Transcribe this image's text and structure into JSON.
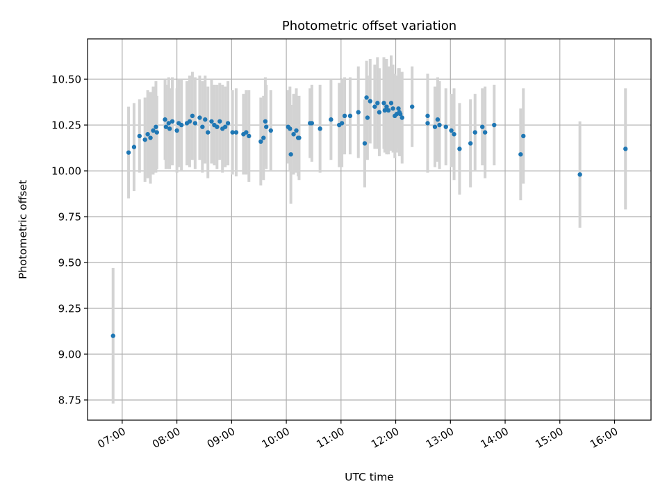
{
  "chart_data": {
    "type": "scatter",
    "title": "Photometric offset variation",
    "xlabel": "UTC time",
    "ylabel": "Photometric offset",
    "x_ticks": [
      "07:00",
      "08:00",
      "09:00",
      "10:00",
      "11:00",
      "12:00",
      "13:00",
      "14:00",
      "15:00",
      "16:00"
    ],
    "y_ticks": [
      "8.75",
      "9.00",
      "9.25",
      "9.50",
      "9.75",
      "10.00",
      "10.25",
      "10.50"
    ],
    "xlim": [
      "06:22",
      "16:40"
    ],
    "ylim": [
      8.64,
      10.72
    ],
    "grid": true,
    "point_color": "#1f77b4",
    "errorbar_color": "#d3d3d3",
    "series": [
      {
        "x": [
          "06:50",
          "07:07",
          "07:13",
          "07:19",
          "07:25",
          "07:28",
          "07:31",
          "07:34",
          "07:37",
          "07:38",
          "07:47",
          "07:48",
          "07:51",
          "07:52",
          "07:55",
          "08:00",
          "08:02",
          "08:05",
          "08:11",
          "08:14",
          "08:17",
          "08:20",
          "08:25",
          "08:28",
          "08:31",
          "08:34",
          "08:38",
          "08:41",
          "08:44",
          "08:47",
          "08:50",
          "08:53",
          "08:56",
          "09:01",
          "09:05",
          "09:13",
          "09:16",
          "09:19",
          "09:32",
          "09:35",
          "09:37",
          "09:38",
          "09:43",
          "10:02",
          "10:04",
          "10:05",
          "10:08",
          "10:11",
          "10:13",
          "10:14",
          "10:26",
          "10:28",
          "10:37",
          "10:49",
          "10:58",
          "11:01",
          "11:04",
          "11:10",
          "11:19",
          "11:26",
          "11:28",
          "11:29",
          "11:32",
          "11:37",
          "11:40",
          "11:42",
          "11:47",
          "11:48",
          "11:50",
          "11:52",
          "11:55",
          "11:57",
          "11:59",
          "12:01",
          "12:03",
          "12:04",
          "12:05",
          "12:07",
          "12:18",
          "12:35",
          "12:35",
          "12:43",
          "12:46",
          "12:48",
          "12:55",
          "13:01",
          "13:04",
          "13:10",
          "13:22",
          "13:27",
          "13:35",
          "13:38",
          "13:48",
          "14:17",
          "14:20",
          "15:22",
          "16:12"
        ],
        "y": [
          9.1,
          10.1,
          10.13,
          10.19,
          10.17,
          10.2,
          10.18,
          10.22,
          10.24,
          10.21,
          10.28,
          10.24,
          10.26,
          10.23,
          10.27,
          10.22,
          10.26,
          10.25,
          10.26,
          10.27,
          10.3,
          10.26,
          10.29,
          10.24,
          10.28,
          10.21,
          10.27,
          10.25,
          10.24,
          10.27,
          10.23,
          10.24,
          10.26,
          10.21,
          10.21,
          10.2,
          10.21,
          10.19,
          10.16,
          10.18,
          10.27,
          10.24,
          10.22,
          10.24,
          10.23,
          10.09,
          10.2,
          10.22,
          10.18,
          10.18,
          10.26,
          10.26,
          10.23,
          10.28,
          10.25,
          10.26,
          10.3,
          10.3,
          10.32,
          10.15,
          10.4,
          10.29,
          10.38,
          10.35,
          10.37,
          10.32,
          10.37,
          10.33,
          10.35,
          10.33,
          10.37,
          10.34,
          10.3,
          10.31,
          10.34,
          10.32,
          10.31,
          10.29,
          10.35,
          10.26,
          10.3,
          10.24,
          10.28,
          10.25,
          10.24,
          10.22,
          10.2,
          10.12,
          10.15,
          10.21,
          10.24,
          10.21,
          10.25,
          10.09,
          10.19,
          9.98,
          10.12
        ],
        "y_error": [
          0.37,
          0.25,
          0.24,
          0.2,
          0.23,
          0.24,
          0.25,
          0.24,
          0.25,
          0.2,
          0.22,
          0.23,
          0.25,
          0.22,
          0.24,
          0.23,
          0.24,
          0.25,
          0.23,
          0.25,
          0.24,
          0.25,
          0.23,
          0.25,
          0.24,
          0.25,
          0.23,
          0.22,
          0.23,
          0.21,
          0.24,
          0.22,
          0.23,
          0.23,
          0.24,
          0.22,
          0.23,
          0.25,
          0.24,
          0.23,
          0.24,
          0.23,
          0.22,
          0.2,
          0.23,
          0.27,
          0.22,
          0.23,
          0.21,
          0.23,
          0.19,
          0.21,
          0.24,
          0.22,
          0.23,
          0.24,
          0.21,
          0.21,
          0.25,
          0.24,
          0.2,
          0.23,
          0.23,
          0.23,
          0.25,
          0.24,
          0.25,
          0.23,
          0.26,
          0.24,
          0.26,
          0.24,
          0.23,
          0.21,
          0.22,
          0.24,
          0.23,
          0.25,
          0.22,
          0.27,
          0.23,
          0.22,
          0.23,
          0.24,
          0.21,
          0.2,
          0.25,
          0.25,
          0.24,
          0.21,
          0.21,
          0.25,
          0.22,
          0.25,
          0.26,
          0.29,
          0.33
        ]
      }
    ]
  }
}
